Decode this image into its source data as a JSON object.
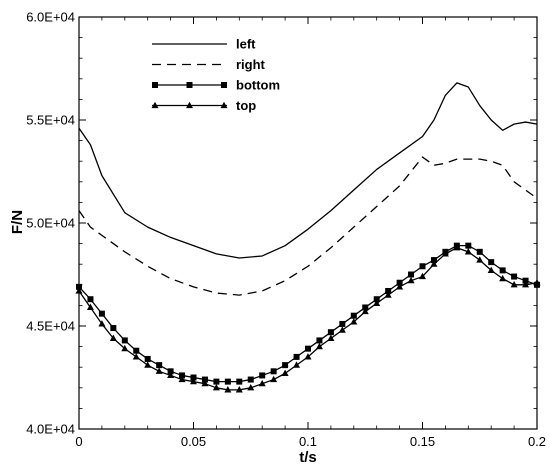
{
  "chart_data": {
    "type": "line",
    "title": "",
    "xlabel": "t/s",
    "ylabel": "F/N",
    "xlim": [
      0,
      0.2
    ],
    "ylim": [
      40000,
      60000
    ],
    "x_ticks": [
      0,
      0.05,
      0.1,
      0.15,
      0.2
    ],
    "x_tick_labels": [
      "0",
      "0.05",
      "0.1",
      "0.15",
      "0.2"
    ],
    "y_ticks": [
      40000,
      45000,
      50000,
      55000,
      60000
    ],
    "y_tick_labels": [
      "4.0E+04",
      "4.5E+04",
      "5.0E+04",
      "5.5E+04",
      "6.0E+04"
    ],
    "grid": false,
    "legend_position": "top-left",
    "series": [
      {
        "name": "left",
        "style": "solid",
        "marker": "none",
        "x": [
          0,
          0.005,
          0.01,
          0.02,
          0.03,
          0.04,
          0.05,
          0.06,
          0.07,
          0.08,
          0.09,
          0.1,
          0.11,
          0.12,
          0.13,
          0.14,
          0.15,
          0.155,
          0.16,
          0.165,
          0.17,
          0.175,
          0.18,
          0.185,
          0.19,
          0.195,
          0.2
        ],
        "values": [
          54600,
          53800,
          52300,
          50500,
          49800,
          49300,
          48900,
          48500,
          48300,
          48400,
          48900,
          49700,
          50600,
          51600,
          52600,
          53400,
          54200,
          55000,
          56200,
          56800,
          56600,
          55700,
          55000,
          54500,
          54800,
          54900,
          54800
        ]
      },
      {
        "name": "right",
        "style": "dashed",
        "marker": "none",
        "x": [
          0,
          0.005,
          0.01,
          0.02,
          0.03,
          0.04,
          0.05,
          0.06,
          0.07,
          0.08,
          0.09,
          0.1,
          0.11,
          0.12,
          0.13,
          0.14,
          0.15,
          0.155,
          0.16,
          0.165,
          0.17,
          0.175,
          0.18,
          0.185,
          0.19,
          0.195,
          0.2
        ],
        "values": [
          50600,
          49800,
          49400,
          48600,
          47900,
          47300,
          46900,
          46600,
          46500,
          46700,
          47200,
          47900,
          48800,
          49800,
          50800,
          51800,
          53200,
          52800,
          52900,
          53100,
          53100,
          53100,
          53000,
          52800,
          52000,
          51600,
          51200
        ]
      },
      {
        "name": "bottom",
        "style": "solid",
        "marker": "square",
        "x": [
          0,
          0.005,
          0.01,
          0.015,
          0.02,
          0.025,
          0.03,
          0.035,
          0.04,
          0.045,
          0.05,
          0.055,
          0.06,
          0.065,
          0.07,
          0.075,
          0.08,
          0.085,
          0.09,
          0.095,
          0.1,
          0.105,
          0.11,
          0.115,
          0.12,
          0.125,
          0.13,
          0.135,
          0.14,
          0.145,
          0.15,
          0.155,
          0.16,
          0.165,
          0.17,
          0.175,
          0.18,
          0.185,
          0.19,
          0.195,
          0.2
        ],
        "values": [
          46900,
          46300,
          45600,
          44900,
          44300,
          43800,
          43400,
          43100,
          42800,
          42600,
          42500,
          42400,
          42300,
          42300,
          42300,
          42400,
          42600,
          42800,
          43100,
          43500,
          43900,
          44300,
          44700,
          45100,
          45500,
          45900,
          46300,
          46700,
          47100,
          47500,
          47900,
          48200,
          48600,
          48900,
          48900,
          48600,
          48100,
          47700,
          47400,
          47200,
          47000
        ]
      },
      {
        "name": "top",
        "style": "solid",
        "marker": "triangle",
        "x": [
          0,
          0.005,
          0.01,
          0.015,
          0.02,
          0.025,
          0.03,
          0.035,
          0.04,
          0.045,
          0.05,
          0.055,
          0.06,
          0.065,
          0.07,
          0.075,
          0.08,
          0.085,
          0.09,
          0.095,
          0.1,
          0.105,
          0.11,
          0.115,
          0.12,
          0.125,
          0.13,
          0.135,
          0.14,
          0.145,
          0.15,
          0.155,
          0.16,
          0.165,
          0.17,
          0.175,
          0.18,
          0.185,
          0.19,
          0.195,
          0.2
        ],
        "values": [
          46700,
          45900,
          45100,
          44400,
          43900,
          43500,
          43100,
          42800,
          42600,
          42400,
          42300,
          42200,
          42000,
          41900,
          41900,
          42000,
          42200,
          42400,
          42700,
          43100,
          43500,
          44000,
          44400,
          44800,
          45200,
          45700,
          46100,
          46500,
          46900,
          47200,
          47400,
          48000,
          48500,
          48800,
          48600,
          48200,
          47700,
          47300,
          47000,
          47000,
          47100
        ]
      }
    ]
  }
}
